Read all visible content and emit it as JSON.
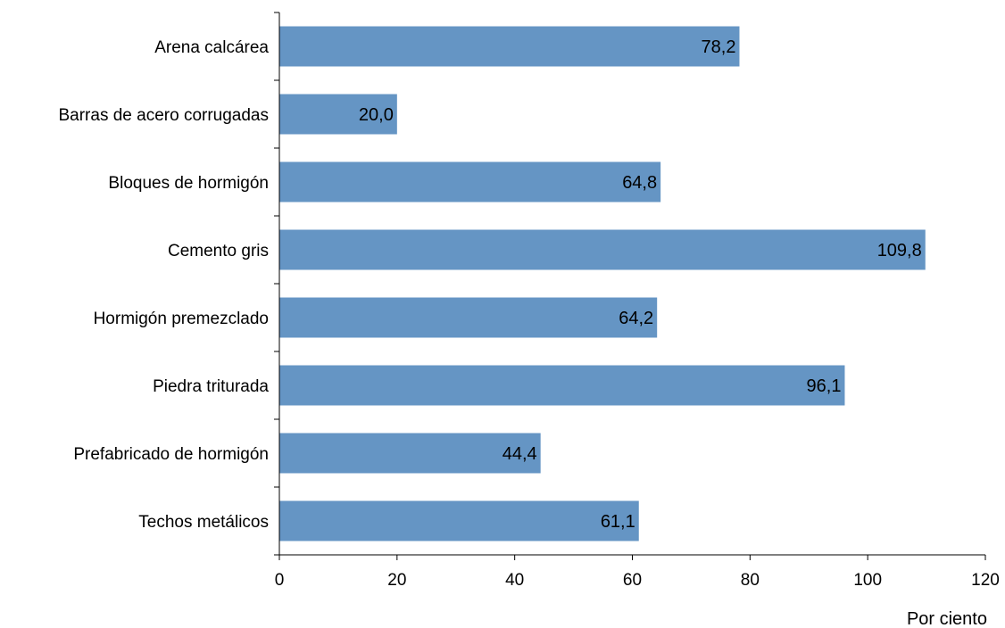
{
  "chart_data": {
    "type": "bar",
    "orientation": "horizontal",
    "title": "",
    "categories": [
      "Arena calcárea",
      "Barras de acero corrugadas",
      "Bloques de hormigón",
      "Cemento gris",
      "Hormigón premezclado",
      "Piedra triturada",
      "Prefabricado de hormigón",
      "Techos metálicos"
    ],
    "values": [
      78.2,
      20.0,
      64.8,
      109.8,
      64.2,
      96.1,
      44.4,
      61.1
    ],
    "value_labels": [
      "78,2",
      "20,0",
      "64,8",
      "109,8",
      "64,2",
      "96,1",
      "44,4",
      "61,1"
    ],
    "xlabel": "Por ciento",
    "ylabel": "",
    "xlim": [
      0,
      120
    ],
    "xticks": [
      0,
      20,
      40,
      60,
      80,
      100,
      120
    ],
    "bar_color": "#6595C4",
    "grid": false,
    "legend": "none"
  }
}
